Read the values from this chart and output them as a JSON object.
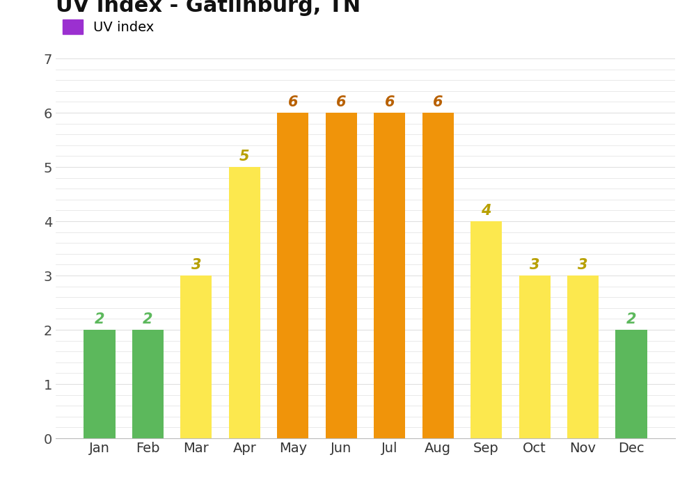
{
  "title": "UV index - Gatlinburg, TN",
  "legend_label": "UV index",
  "months": [
    "Jan",
    "Feb",
    "Mar",
    "Apr",
    "May",
    "Jun",
    "Jul",
    "Aug",
    "Sep",
    "Oct",
    "Nov",
    "Dec"
  ],
  "values": [
    2,
    2,
    3,
    5,
    6,
    6,
    6,
    6,
    4,
    3,
    3,
    2
  ],
  "bar_colors": [
    "#5cb85c",
    "#5cb85c",
    "#fce84e",
    "#fce84e",
    "#f0940a",
    "#f0940a",
    "#f0940a",
    "#f0940a",
    "#fce84e",
    "#fce84e",
    "#fce84e",
    "#5cb85c"
  ],
  "label_colors": [
    "#5cb85c",
    "#5cb85c",
    "#b8a000",
    "#b8a000",
    "#b86000",
    "#b86000",
    "#b86000",
    "#b86000",
    "#b8a000",
    "#b8a000",
    "#b8a000",
    "#5cb85c"
  ],
  "legend_color": "#9b30d0",
  "ylim": [
    0,
    7
  ],
  "yticks": [
    0,
    1,
    2,
    3,
    4,
    5,
    6,
    7
  ],
  "title_fontsize": 22,
  "legend_fontsize": 14,
  "tick_fontsize": 14,
  "annotation_fontsize": 15,
  "background_color": "#ffffff",
  "grid_color": "#e0e0e0"
}
